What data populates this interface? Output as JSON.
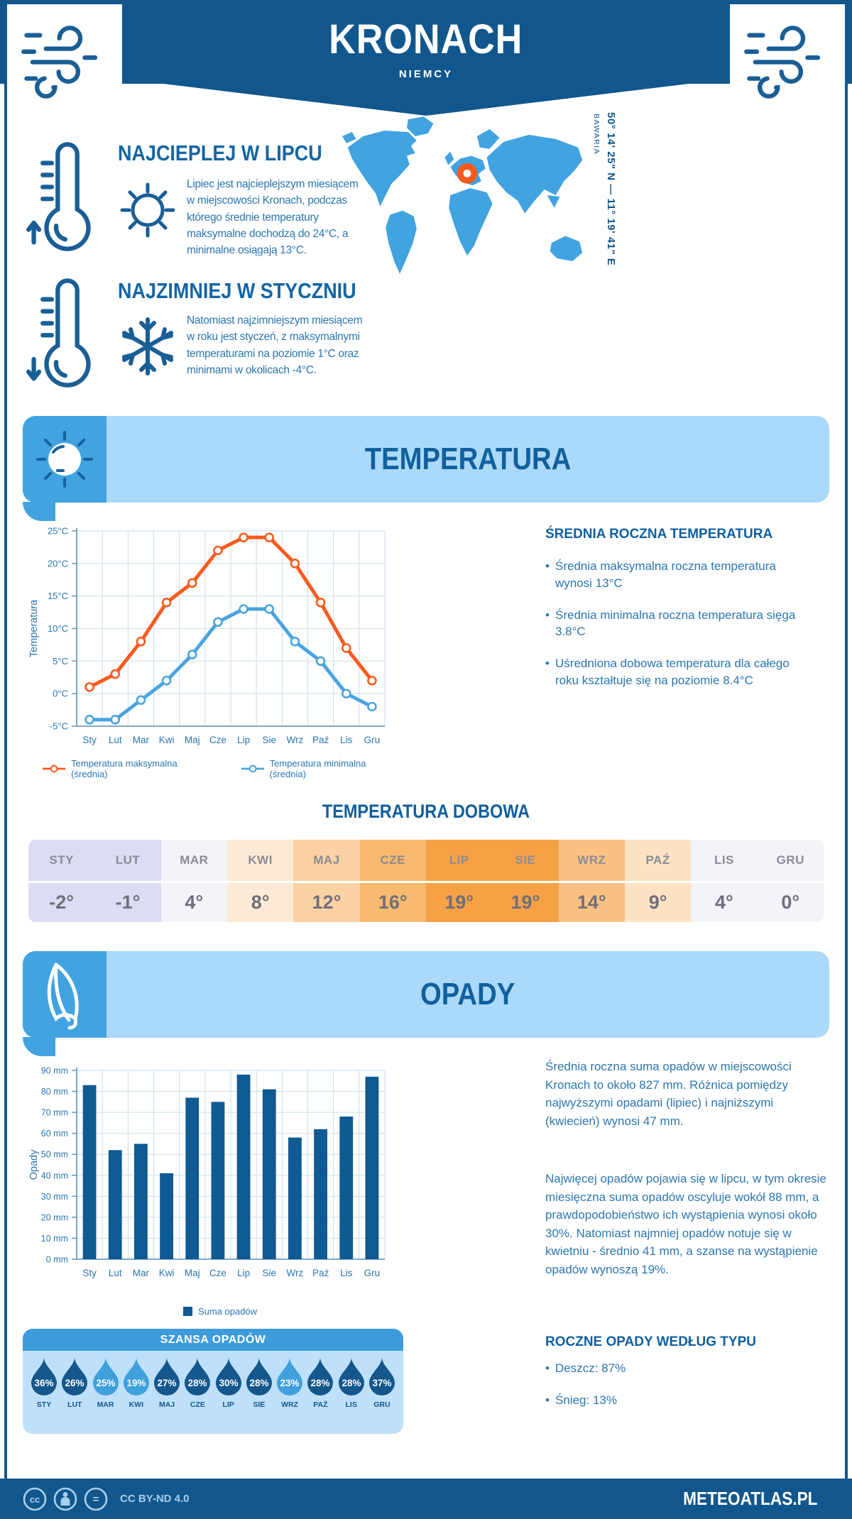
{
  "header": {
    "title": "KRONACH",
    "subtitle": "NIEMCY"
  },
  "location": {
    "coordinates": "50° 14' 25\" N — 11° 19' 41\" E",
    "region": "BAWARIA"
  },
  "highlights": [
    {
      "title": "NAJCIEPLEJ W LIPCU",
      "text": "Lipiec jest najcieplejszym miesiącem w miejscowości Kronach, podczas którego średnie temperatury maksymalne dochodzą do 24°C, a minimalne osiągają 13°C."
    },
    {
      "title": "NAJZIMNIEJ W STYCZNIU",
      "text": "Natomiast najzimniejszym miesiącem w roku jest styczeń, z maksymalnymi temperaturami na poziomie 1°C oraz minimami w okolicach -4°C."
    }
  ],
  "temperature": {
    "banner": "TEMPERATURA",
    "summary_title": "ŚREDNIA ROCZNA TEMPERATURA",
    "summary_bullets": [
      "Średnia maksymalna roczna temperatura wynosi 13°C",
      "Średnia minimalna roczna temperatura sięga 3.8°C",
      "Uśredniona dobowa temperatura dla całego roku kształtuje się na poziomie 8.4°C"
    ],
    "daily_title": "TEMPERATURA DOBOWA",
    "daily_months": [
      "STY",
      "LUT",
      "MAR",
      "KWI",
      "MAJ",
      "CZE",
      "LIP",
      "SIE",
      "WRZ",
      "PAŹ",
      "LIS",
      "GRU"
    ],
    "daily_values": [
      "-2°",
      "-1°",
      "4°",
      "8°",
      "12°",
      "16°",
      "19°",
      "19°",
      "14°",
      "9°",
      "4°",
      "0°"
    ],
    "daily_colors": [
      "#DCDCF4",
      "#DCDCF4",
      "#F3F3FA",
      "#FDEAD4",
      "#FBD2A4",
      "#F9B96F",
      "#F7A147",
      "#F7A147",
      "#FAC183",
      "#FDE3C4",
      "#F3F3FA",
      "#F3F3FA"
    ]
  },
  "precipitation": {
    "banner": "OPADY",
    "text1": "Średnia roczna suma opadów w miejscowości Kronach to około 827 mm. Różnica pomiędzy najwyższymi opadami (lipiec) i najniższymi (kwiecień) wynosi 47 mm.",
    "text2": "Najwięcej opadów pojawia się w lipcu, w tym okresie miesięczna suma opadów oscyluje wokół 88 mm, a prawdopodobieństwo ich wystąpienia wynosi około 30%. Natomiast najmniej opadów notuje się w kwietniu - średnio 41 mm, a szanse na wystąpienie opadów wynoszą 19%.",
    "chance_title": "SZANSA OPADÓW",
    "chance_tones": {
      "dark": "#14578C",
      "light": "#3FA0DC"
    },
    "chance": [
      {
        "month": "STY",
        "value": "36%",
        "tone": "dark"
      },
      {
        "month": "LUT",
        "value": "26%",
        "tone": "dark"
      },
      {
        "month": "MAR",
        "value": "25%",
        "tone": "light"
      },
      {
        "month": "KWI",
        "value": "19%",
        "tone": "light"
      },
      {
        "month": "MAJ",
        "value": "27%",
        "tone": "dark"
      },
      {
        "month": "CZE",
        "value": "28%",
        "tone": "dark"
      },
      {
        "month": "LIP",
        "value": "30%",
        "tone": "dark"
      },
      {
        "month": "SIE",
        "value": "28%",
        "tone": "dark"
      },
      {
        "month": "WRZ",
        "value": "23%",
        "tone": "light"
      },
      {
        "month": "PAŹ",
        "value": "28%",
        "tone": "dark"
      },
      {
        "month": "LIS",
        "value": "28%",
        "tone": "dark"
      },
      {
        "month": "GRU",
        "value": "37%",
        "tone": "dark"
      }
    ],
    "types_title": "ROCZNE OPADY WEDŁUG TYPU",
    "types_bullets": [
      "Deszcz: 87%",
      "Śnieg: 13%"
    ]
  },
  "footer": {
    "license": "CC BY-ND 4.0",
    "brand": "METEOATLAS.PL"
  },
  "colors": {
    "navy": "#11578D",
    "heading": "#1565A3",
    "body_text": "#2B76AF",
    "banner_bg": "#ABD9F9",
    "accent_blue": "#41A3E0",
    "grid": "#C9DDEC",
    "axis": "#6E9DC2",
    "max_line": "#FB5A1E",
    "min_line": "#4BA4DF",
    "bar": "#0F5A92",
    "map_blue": "#41A3E0",
    "marker_orange": "#F95B1D"
  },
  "chart_data": [
    {
      "type": "line",
      "categories": [
        "Sty",
        "Lut",
        "Mar",
        "Kwi",
        "Maj",
        "Cze",
        "Lip",
        "Sie",
        "Wrz",
        "Paź",
        "Lis",
        "Gru"
      ],
      "series": [
        {
          "name": "Temperatura maksymalna (średnia)",
          "color": "#FB5A1E",
          "values": [
            1,
            3,
            8,
            14,
            17,
            22,
            24,
            24,
            20,
            14,
            7,
            2
          ]
        },
        {
          "name": "Temperatura minimalna (średnia)",
          "color": "#4BA4DF",
          "values": [
            -4,
            -4,
            -1,
            2,
            6,
            11,
            13,
            13,
            8,
            5,
            0,
            -2
          ]
        }
      ],
      "title": "",
      "xlabel": "",
      "ylabel": "Temperatura",
      "ylim": [
        -5,
        25
      ],
      "ytick_step": 5,
      "ytick_suffix": "°C",
      "grid": true,
      "legend_position": "bottom"
    },
    {
      "type": "bar",
      "categories": [
        "Sty",
        "Lut",
        "Mar",
        "Kwi",
        "Maj",
        "Cze",
        "Lip",
        "Sie",
        "Wrz",
        "Paź",
        "Lis",
        "Gru"
      ],
      "series": [
        {
          "name": "Suma opadów",
          "color": "#0F5A92",
          "values": [
            83,
            52,
            55,
            41,
            77,
            75,
            88,
            81,
            58,
            62,
            68,
            87
          ]
        }
      ],
      "title": "",
      "xlabel": "",
      "ylabel": "Opady",
      "ylim": [
        0,
        90
      ],
      "ytick_step": 10,
      "ytick_suffix": " mm",
      "grid": true,
      "legend_position": "bottom"
    }
  ]
}
